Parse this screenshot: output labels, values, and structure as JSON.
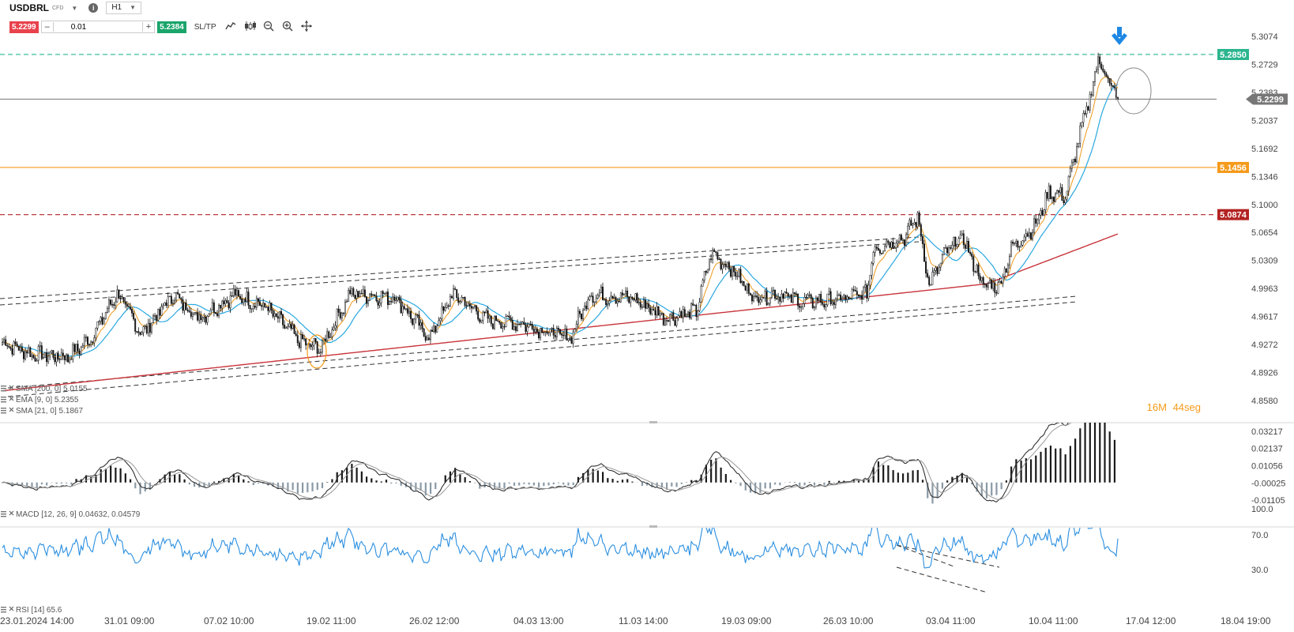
{
  "toolbar": {
    "symbol": "USDBRL",
    "symbol_type": "CFD",
    "timeframe": "H1",
    "sell_price": "5.2299",
    "buy_price": "5.2384",
    "volume": "0.01",
    "sltp_label": "SL/TP",
    "minus_label": "–",
    "plus_label": "+",
    "icons": [
      "line-chart-icon",
      "candles-icon",
      "zoom-out-icon",
      "zoom-in-icon",
      "crosshair-icon"
    ]
  },
  "colors": {
    "bull": "#ffffff",
    "bear": "#1a1a1a",
    "ema9": "#f0a22e",
    "sma21": "#29a8e0",
    "sma200": "#c8343a",
    "current_line": "#777777",
    "resistance_high": "#2bb58e",
    "level_mid": "#f59a1a",
    "level_low": "#b32222",
    "rsi": "#2b8fe0",
    "macd_line": "#333333",
    "signal_line": "#999999",
    "hist_pos": "#1a1a1a",
    "hist_neg": "#8a9aa6",
    "arrow": "#1e88e5"
  },
  "chart_data": [
    {
      "type": "candlestick",
      "symbol": "USDBRL",
      "timeframe": "H1",
      "y_ticks": [
        "5.3074",
        "5.2729",
        "5.2383",
        "5.2037",
        "5.1692",
        "5.1346",
        "5.1000",
        "5.0654",
        "5.0309",
        "4.9963",
        "4.9617",
        "4.9272",
        "4.8926",
        "4.8580"
      ],
      "ylim": [
        4.858,
        5.3074
      ],
      "x_ticks": [
        "23.01.2024 14:00",
        "31.01 09:00",
        "07.02 10:00",
        "19.02 11:00",
        "26.02 12:00",
        "04.03 13:00",
        "11.03 14:00",
        "19.03 09:00",
        "26.03 10:00",
        "03.04 11:00",
        "10.04 11:00",
        "17.04 12:00",
        "18.04 19:00"
      ],
      "levels": [
        {
          "label": "5.2850",
          "value": 5.285,
          "style": "dashed",
          "color": "resistance_high"
        },
        {
          "label": "5.2299",
          "value": 5.2299,
          "style": "solid",
          "color": "current_line"
        },
        {
          "label": "5.1456",
          "value": 5.1456,
          "style": "solid",
          "color": "level_mid"
        },
        {
          "label": "5.0874",
          "value": 5.0874,
          "style": "dashed",
          "color": "level_low"
        }
      ],
      "close_anchors": [
        [
          0,
          4.93
        ],
        [
          18,
          4.915
        ],
        [
          40,
          4.912
        ],
        [
          54,
          4.935
        ],
        [
          70,
          4.99
        ],
        [
          85,
          4.94
        ],
        [
          104,
          4.988
        ],
        [
          120,
          4.96
        ],
        [
          141,
          4.988
        ],
        [
          160,
          4.975
        ],
        [
          182,
          4.93
        ],
        [
          194,
          4.922
        ],
        [
          212,
          4.99
        ],
        [
          240,
          4.985
        ],
        [
          260,
          4.935
        ],
        [
          275,
          4.99
        ],
        [
          295,
          4.958
        ],
        [
          318,
          4.952
        ],
        [
          346,
          4.935
        ],
        [
          358,
          4.988
        ],
        [
          383,
          4.985
        ],
        [
          405,
          4.96
        ],
        [
          423,
          4.968
        ],
        [
          432,
          5.04
        ],
        [
          445,
          5.02
        ],
        [
          458,
          4.985
        ],
        [
          473,
          4.99
        ],
        [
          488,
          4.98
        ],
        [
          508,
          4.982
        ],
        [
          527,
          4.99
        ],
        [
          531,
          5.045
        ],
        [
          550,
          5.06
        ],
        [
          558,
          5.085
        ],
        [
          565,
          5.0
        ],
        [
          575,
          5.04
        ],
        [
          585,
          5.06
        ],
        [
          598,
          5.0
        ],
        [
          608,
          5.0
        ],
        [
          615,
          5.045
        ],
        [
          630,
          5.075
        ],
        [
          638,
          5.115
        ],
        [
          648,
          5.11
        ],
        [
          656,
          5.18
        ],
        [
          664,
          5.24
        ],
        [
          668,
          5.28
        ],
        [
          675,
          5.25
        ],
        [
          680,
          5.2299
        ]
      ],
      "indicators": [
        {
          "name": "SMA",
          "params": "200, 0",
          "last": "5.0155",
          "label": "SMA [200, 0] 5.0155"
        },
        {
          "name": "EMA",
          "params": "9, 0",
          "last": "5.2355",
          "label": "EMA [9, 0] 5.2355"
        },
        {
          "name": "SMA",
          "params": "21, 0",
          "last": "5.1867",
          "label": "SMA [21, 0] 5.1867"
        }
      ],
      "countdown": {
        "minutes": "16M",
        "seconds": "44seg"
      }
    },
    {
      "type": "bar",
      "name": "MACD",
      "label": "MACD [12, 26, 9] 0.04632, 0.04579",
      "params": "12, 26, 9",
      "last_macd": 0.04632,
      "last_signal": 0.04579,
      "y_ticks": [
        "0.03217",
        "0.02137",
        "0.01056",
        "-0.00025",
        "-0.01105"
      ],
      "ylim": [
        -0.01105,
        0.03217
      ]
    },
    {
      "type": "line",
      "name": "RSI",
      "label": "RSI [14] 65.6",
      "period": 14,
      "last": 65.6,
      "y_ticks": [
        "100.0",
        "70.0",
        "30.0"
      ],
      "ylim": [
        30,
        100
      ]
    }
  ]
}
